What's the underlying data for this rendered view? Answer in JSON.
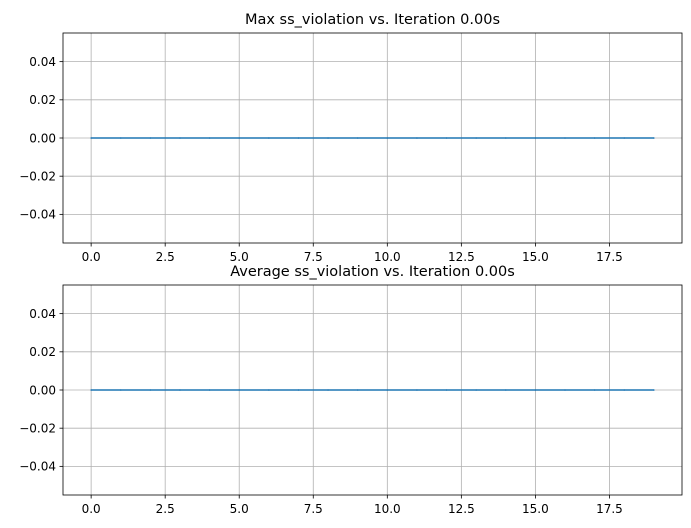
{
  "chart_data": [
    {
      "type": "line",
      "title": "Max ss_violation vs. Iteration 0.00s",
      "xlabel": "",
      "ylabel": "",
      "x": [
        0,
        1,
        2,
        3,
        4,
        5,
        6,
        7,
        8,
        9,
        10,
        11,
        12,
        13,
        14,
        15,
        16,
        17,
        18,
        19
      ],
      "series": [
        {
          "values": [
            0,
            0,
            0,
            0,
            0,
            0,
            0,
            0,
            0,
            0,
            0,
            0,
            0,
            0,
            0,
            0,
            0,
            0,
            0,
            0
          ],
          "color": "#1f77b4"
        }
      ],
      "xlim": [
        -0.95,
        19.95
      ],
      "ylim": [
        -0.055,
        0.055
      ],
      "xticks": [
        0.0,
        2.5,
        5.0,
        7.5,
        10.0,
        12.5,
        15.0,
        17.5
      ],
      "xtick_labels": [
        "0.0",
        "2.5",
        "5.0",
        "7.5",
        "10.0",
        "12.5",
        "15.0",
        "17.5"
      ],
      "yticks": [
        -0.04,
        -0.02,
        0.0,
        0.02,
        0.04
      ],
      "ytick_labels": [
        "−0.04",
        "−0.02",
        "0.00",
        "0.02",
        "0.04"
      ],
      "grid": true
    },
    {
      "type": "line",
      "title": "Average ss_violation vs. Iteration 0.00s",
      "xlabel": "",
      "ylabel": "",
      "x": [
        0,
        1,
        2,
        3,
        4,
        5,
        6,
        7,
        8,
        9,
        10,
        11,
        12,
        13,
        14,
        15,
        16,
        17,
        18,
        19
      ],
      "series": [
        {
          "values": [
            0,
            0,
            0,
            0,
            0,
            0,
            0,
            0,
            0,
            0,
            0,
            0,
            0,
            0,
            0,
            0,
            0,
            0,
            0,
            0
          ],
          "color": "#1f77b4"
        }
      ],
      "xlim": [
        -0.95,
        19.95
      ],
      "ylim": [
        -0.055,
        0.055
      ],
      "xticks": [
        0.0,
        2.5,
        5.0,
        7.5,
        10.0,
        12.5,
        15.0,
        17.5
      ],
      "xtick_labels": [
        "0.0",
        "2.5",
        "5.0",
        "7.5",
        "10.0",
        "12.5",
        "15.0",
        "17.5"
      ],
      "yticks": [
        -0.04,
        -0.02,
        0.0,
        0.02,
        0.04
      ],
      "ytick_labels": [
        "−0.04",
        "−0.02",
        "0.00",
        "0.02",
        "0.04"
      ],
      "grid": true
    }
  ]
}
